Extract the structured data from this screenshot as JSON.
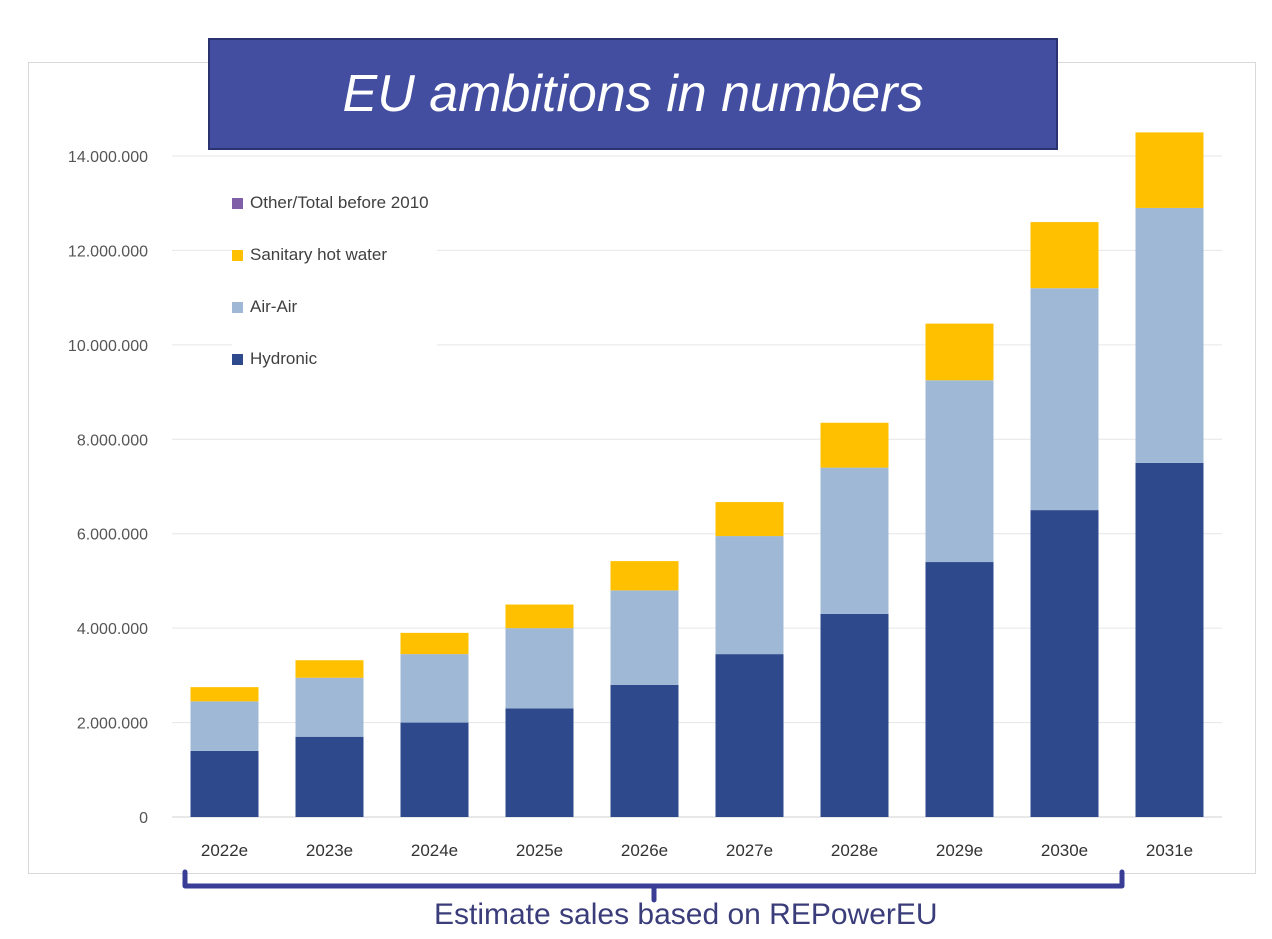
{
  "banner": {
    "title": "EU ambitions in numbers"
  },
  "caption": {
    "text": "Estimate sales based on REPowerEU"
  },
  "colors": {
    "banner_bg": "#434ea1",
    "bracket": "#3a3d96",
    "caption": "#3a3d7a"
  },
  "chart_data": {
    "type": "bar",
    "stacked": true,
    "title": "",
    "xlabel": "",
    "ylabel": "",
    "ylim": [
      0,
      14000000
    ],
    "y_ticks": [
      "0",
      "2.000.000",
      "4.000.000",
      "6.000.000",
      "8.000.000",
      "10.000.000",
      "12.000.000",
      "14.000.000"
    ],
    "y_tick_values": [
      0,
      2000000,
      4000000,
      6000000,
      8000000,
      10000000,
      12000000,
      14000000
    ],
    "grid": true,
    "legend_position": "top-left",
    "categories": [
      "2022e",
      "2023e",
      "2024e",
      "2025e",
      "2026e",
      "2027e",
      "2028e",
      "2029e",
      "2030e",
      "2031e"
    ],
    "series": [
      {
        "name": "Hydronic",
        "color": "#2e4a8c",
        "values": [
          1400000,
          1700000,
          2000000,
          2300000,
          2800000,
          3450000,
          4300000,
          5400000,
          6500000,
          7500000
        ]
      },
      {
        "name": "Air-Air",
        "color": "#9fb8d6",
        "values": [
          1050000,
          1250000,
          1450000,
          1700000,
          2000000,
          2500000,
          3100000,
          3850000,
          4700000,
          5400000
        ]
      },
      {
        "name": "Sanitary hot water",
        "color": "#ffc000",
        "values": [
          300000,
          370000,
          450000,
          500000,
          620000,
          720000,
          950000,
          1200000,
          1400000,
          1600000
        ]
      },
      {
        "name": "Other/Total before 2010",
        "color": "#7f60a8",
        "values": [
          0,
          0,
          0,
          0,
          0,
          0,
          0,
          0,
          0,
          0
        ]
      }
    ],
    "legend_order": [
      "Other/Total before 2010",
      "Sanitary hot water",
      "Air-Air",
      "Hydronic"
    ]
  }
}
